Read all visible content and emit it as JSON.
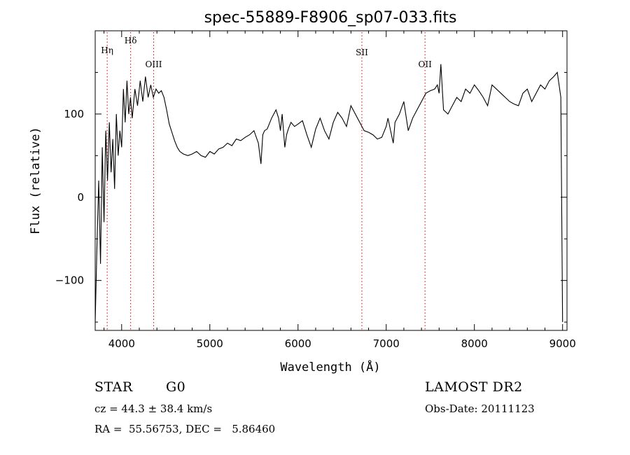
{
  "chart_data": {
    "type": "line",
    "title": "spec-55889-F8906_sp07-033.fits",
    "xlabel": "Wavelength (Å)",
    "ylabel": "Flux (relative)",
    "xlim": [
      3700,
      9050
    ],
    "ylim": [
      -160,
      200
    ],
    "xticks": [
      4000,
      5000,
      6000,
      7000,
      8000,
      9000
    ],
    "yticks": [
      -100,
      0,
      100
    ],
    "line_color": "#000000",
    "marker_color": "#cc0000",
    "series": [
      {
        "x": [
          3700,
          3720,
          3740,
          3760,
          3780,
          3800,
          3820,
          3840,
          3860,
          3880,
          3900,
          3920,
          3940,
          3960,
          3980,
          4000,
          4020,
          4040,
          4060,
          4080,
          4100,
          4120,
          4150,
          4180,
          4210,
          4240,
          4270,
          4300,
          4330,
          4360,
          4390,
          4420,
          4450,
          4480,
          4510,
          4540,
          4570,
          4600,
          4630,
          4660,
          4700,
          4750,
          4800,
          4850,
          4900,
          4950,
          5000,
          5050,
          5100,
          5150,
          5200,
          5250,
          5300,
          5350,
          5400,
          5450,
          5500,
          5550,
          5580,
          5600,
          5620,
          5650,
          5700,
          5750,
          5780,
          5800,
          5820,
          5850,
          5870,
          5890,
          5920,
          5960,
          6000,
          6050,
          6100,
          6150,
          6200,
          6250,
          6300,
          6350,
          6400,
          6450,
          6500,
          6550,
          6600,
          6650,
          6700,
          6750,
          6800,
          6850,
          6900,
          6950,
          7000,
          7020,
          7050,
          7080,
          7100,
          7150,
          7200,
          7250,
          7300,
          7350,
          7400,
          7450,
          7500,
          7550,
          7580,
          7600,
          7620,
          7650,
          7700,
          7750,
          7800,
          7850,
          7900,
          7950,
          8000,
          8050,
          8100,
          8150,
          8200,
          8250,
          8300,
          8350,
          8400,
          8450,
          8500,
          8550,
          8600,
          8650,
          8700,
          8750,
          8800,
          8850,
          8900,
          8940,
          8960,
          8980,
          9000
        ],
        "y": [
          -150,
          -60,
          20,
          -80,
          60,
          -30,
          80,
          20,
          90,
          30,
          70,
          10,
          100,
          50,
          80,
          60,
          130,
          90,
          140,
          100,
          120,
          95,
          130,
          110,
          140,
          115,
          145,
          120,
          135,
          120,
          130,
          125,
          128,
          120,
          105,
          88,
          78,
          68,
          60,
          55,
          52,
          50,
          52,
          55,
          50,
          48,
          55,
          52,
          58,
          60,
          65,
          62,
          70,
          68,
          72,
          75,
          80,
          65,
          40,
          75,
          80,
          82,
          95,
          105,
          95,
          80,
          100,
          60,
          75,
          82,
          90,
          85,
          88,
          92,
          75,
          60,
          82,
          95,
          80,
          70,
          90,
          102,
          95,
          85,
          110,
          100,
          90,
          80,
          78,
          75,
          70,
          72,
          85,
          95,
          80,
          65,
          90,
          100,
          115,
          80,
          95,
          105,
          115,
          125,
          128,
          130,
          135,
          125,
          160,
          105,
          100,
          110,
          120,
          115,
          130,
          125,
          135,
          128,
          120,
          110,
          135,
          130,
          125,
          120,
          115,
          112,
          110,
          125,
          130,
          115,
          125,
          135,
          130,
          140,
          145,
          150,
          135,
          120,
          -150
        ]
      }
    ],
    "line_markers": [
      {
        "label": "Hη",
        "wavelength": 3836
      },
      {
        "label": "Hδ",
        "wavelength": 4102
      },
      {
        "label": "OIII",
        "wavelength": 4363
      },
      {
        "label": "SII",
        "wavelength": 6724
      },
      {
        "label": "OII",
        "wavelength": 7440
      }
    ]
  },
  "info": {
    "object_type": "STAR",
    "subclass": "G0",
    "survey": "LAMOST DR2",
    "cz": "cz = 44.3 ± 38.4 km/s",
    "obs_date": "Obs-Date: 20111123",
    "coords": "RA =  55.56753, DEC =   5.86460"
  }
}
